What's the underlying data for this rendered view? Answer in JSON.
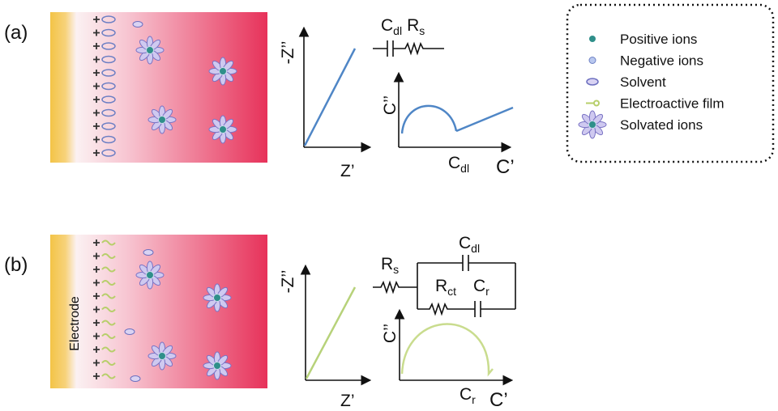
{
  "panels": [
    {
      "label": "(a)",
      "nyquist": {
        "y_label": "-Z’’",
        "x_label": "Z’"
      },
      "circuit": [
        {
          "base": "C",
          "sub": "dl"
        },
        {
          "base": "R",
          "sub": "s"
        }
      ],
      "capacitance": {
        "y_label": "C’’",
        "x_label": "C’",
        "marker": {
          "base": "C",
          "sub": "dl"
        }
      }
    },
    {
      "label": "(b)",
      "electrode_label": "Electrode",
      "nyquist": {
        "y_label": "-Z’’",
        "x_label": "Z’"
      },
      "circuit": [
        {
          "base": "R",
          "sub": "s"
        },
        {
          "base": "C",
          "sub": "dl"
        },
        {
          "base": "R",
          "sub": "ct"
        },
        {
          "base": "C",
          "sub": "r"
        }
      ],
      "capacitance": {
        "y_label": "C’’",
        "x_label": "C’",
        "marker": {
          "base": "C",
          "sub": "r"
        }
      }
    }
  ],
  "legend": [
    "Positive ions",
    "Negative ions",
    "Solvent",
    "Electroactive film",
    "Solvated ions"
  ]
}
